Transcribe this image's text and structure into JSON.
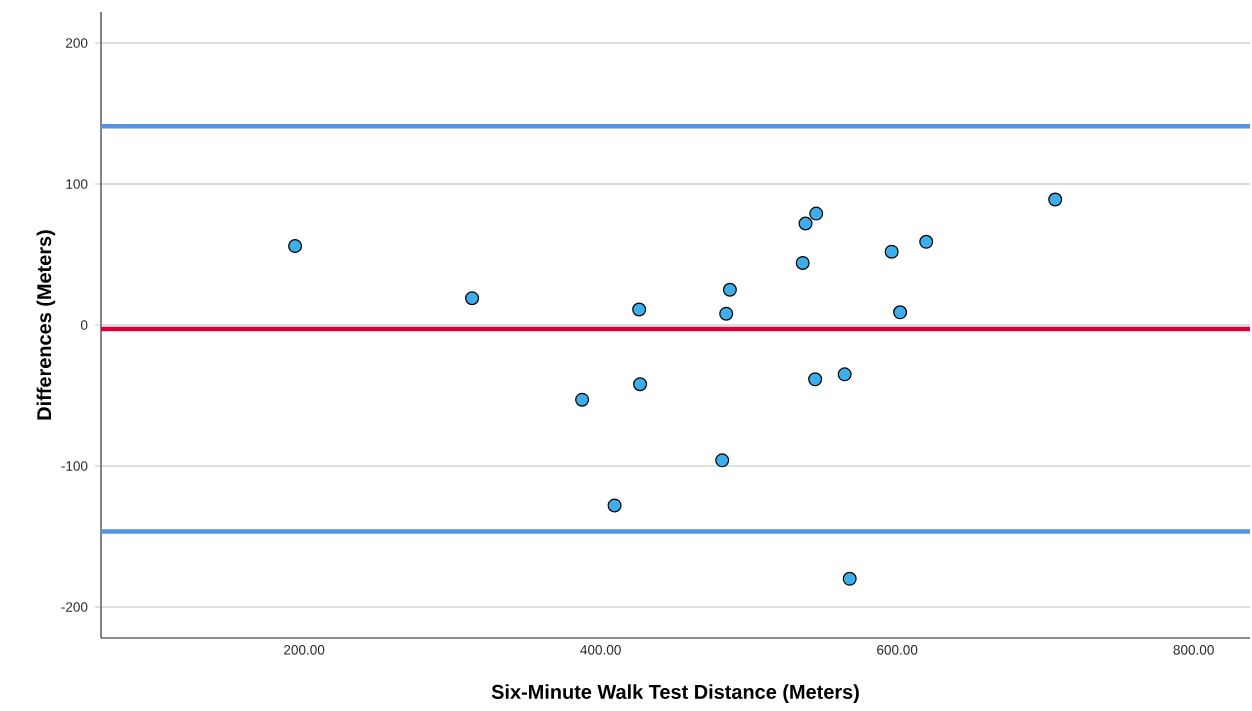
{
  "chart_data": {
    "type": "scatter",
    "xlabel": "Six-Minute Walk Test Distance (Meters)",
    "ylabel": "Differences (Meters)",
    "xlim": [
      63,
      838
    ],
    "ylim": [
      -222,
      222
    ],
    "xticks": [
      {
        "value": 200,
        "label": "200.00"
      },
      {
        "value": 400,
        "label": "400.00"
      },
      {
        "value": 600,
        "label": "600.00"
      },
      {
        "value": 800,
        "label": "800.00"
      }
    ],
    "yticks": [
      -200,
      -100,
      0,
      100,
      200
    ],
    "grid": "y",
    "series": [
      {
        "color": "#3daee9",
        "x": [
          193.9,
          313.3,
          387.5,
          426,
          426.6,
          409.4,
          482,
          484.7,
          487.2,
          536.3,
          538.2,
          545.4,
          544.7,
          564.6,
          568,
          596.3,
          602,
          619.6,
          706.6
        ],
        "values": [
          56,
          19,
          -53,
          11,
          -42,
          -128,
          -96,
          8,
          25,
          44,
          72,
          79,
          -38.5,
          -35,
          -180,
          52,
          9,
          59,
          89
        ]
      }
    ],
    "ref_lines": [
      {
        "axis": "y",
        "value": 141,
        "color": "#5592e0"
      },
      {
        "axis": "y",
        "value": -2.8,
        "color": "#d7003a"
      },
      {
        "axis": "y",
        "value": -146.5,
        "color": "#5592e0"
      }
    ]
  }
}
